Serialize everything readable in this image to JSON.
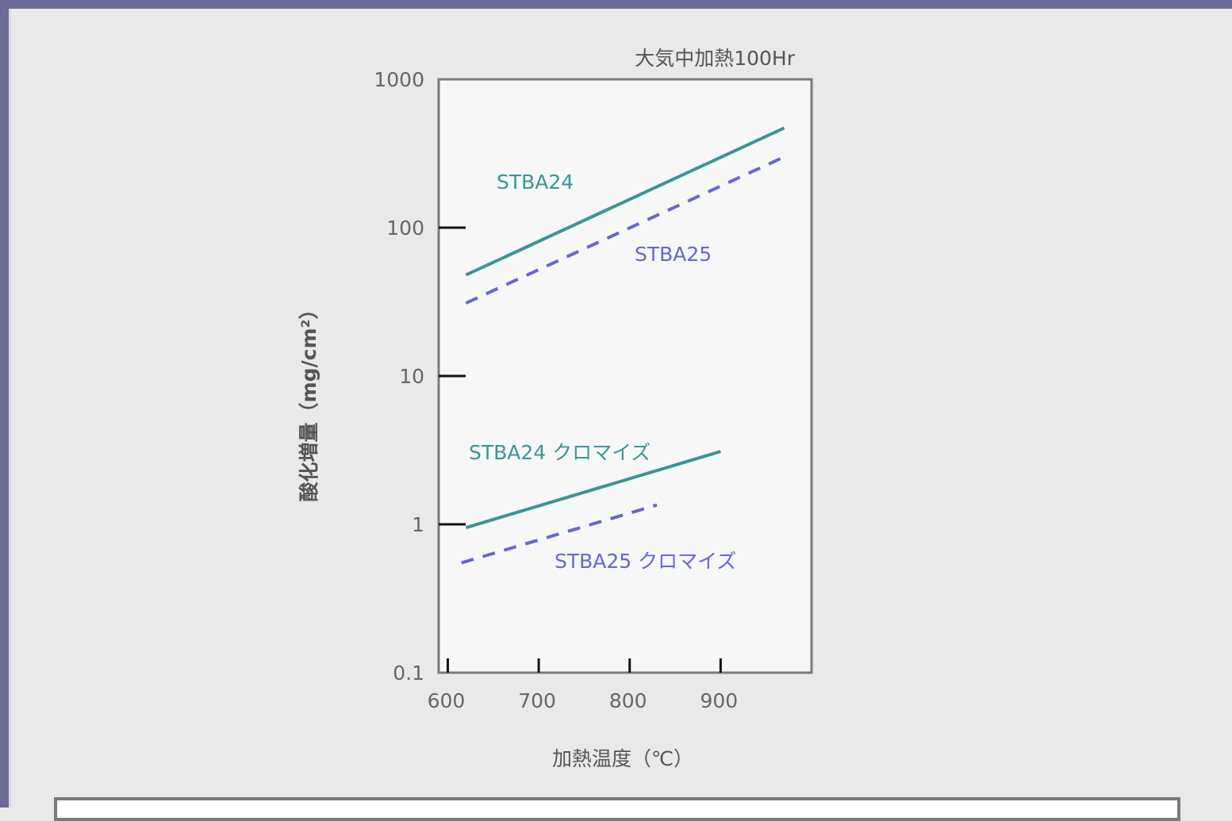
{
  "chart_data": {
    "type": "line",
    "title": "",
    "annotation": "大気中加熱100Hr",
    "xlabel": "加熱温度（℃）",
    "ylabel": "酸化増量（mg/cm²）",
    "yscale": "log",
    "xlim": [
      590,
      1000
    ],
    "ylim": [
      0.1,
      1000
    ],
    "x_ticks": [
      600,
      700,
      800,
      900
    ],
    "x_tick_labels": [
      "600",
      "700",
      "800",
      "900"
    ],
    "y_ticks": [
      0.1,
      1,
      10,
      100,
      1000
    ],
    "y_tick_labels": [
      "0.1",
      "1",
      "10",
      "100",
      "1000"
    ],
    "grid": false,
    "series": [
      {
        "name": "STBA24",
        "color": "#3b9595",
        "style": "solid",
        "x": [
          620,
          970
        ],
        "y": [
          48,
          470
        ]
      },
      {
        "name": "STBA25",
        "color": "#6666d6",
        "style": "dashed",
        "x": [
          620,
          970
        ],
        "y": [
          31,
          300
        ]
      },
      {
        "name": "STBA24 クロマイズ",
        "color": "#3b9595",
        "style": "solid",
        "x": [
          620,
          900
        ],
        "y": [
          0.95,
          3.1
        ]
      },
      {
        "name": "STBA25 クロマイズ",
        "color": "#6666d6",
        "style": "dashed",
        "x": [
          615,
          830
        ],
        "y": [
          0.55,
          1.35
        ]
      }
    ]
  }
}
